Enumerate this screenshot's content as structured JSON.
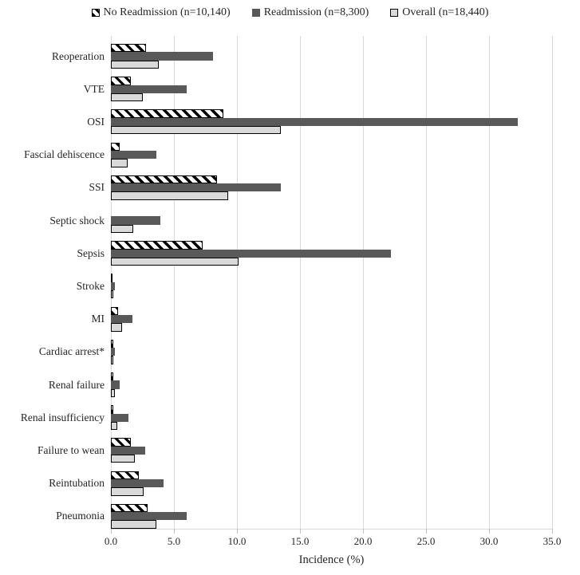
{
  "legend": {
    "items": [
      {
        "label": "No Readmission (n=10,140)",
        "marker": "striped-square-icon",
        "style": "striped"
      },
      {
        "label": "Readmission (n=8,300)",
        "marker": "dark-square-icon",
        "style": "dark"
      },
      {
        "label": "Overall (n=18,440)",
        "marker": "light-square-icon",
        "style": "light"
      }
    ]
  },
  "chart_data": {
    "type": "bar",
    "orientation": "horizontal",
    "title": "",
    "xlabel": "Incidence (%)",
    "ylabel": "",
    "xlim": [
      0,
      35
    ],
    "xticks": [
      0,
      5,
      10,
      15,
      20,
      25,
      30,
      35
    ],
    "xtick_labels": [
      "0.0",
      "5.0",
      "10.0",
      "15.0",
      "20.0",
      "25.0",
      "30.0",
      "35.0"
    ],
    "grid": true,
    "legend_position": "top",
    "categories": [
      "Reoperation",
      "VTE",
      "OSI",
      "Fascial dehiscence",
      "SSI",
      "Septic shock",
      "Sepsis",
      "Stroke",
      "MI",
      "Cardiac arrest*",
      "Renal failure",
      "Renal insufficiency",
      "Failure to wean",
      "Reintubation",
      "Pneumonia"
    ],
    "series": [
      {
        "name": "No Readmission (n=10,140)",
        "style": "striped",
        "values": [
          2.8,
          1.6,
          8.9,
          0.7,
          8.4,
          0.0,
          7.3,
          0.1,
          0.6,
          0.2,
          0.2,
          0.2,
          1.6,
          2.2,
          2.9
        ]
      },
      {
        "name": "Readmission (n=8,300)",
        "style": "dark",
        "values": [
          8.1,
          6.0,
          32.3,
          3.6,
          13.5,
          3.9,
          22.2,
          0.3,
          1.7,
          0.3,
          0.7,
          1.4,
          2.7,
          4.2,
          6.0
        ]
      },
      {
        "name": "Overall (n=18,440)",
        "style": "light",
        "values": [
          3.8,
          2.5,
          13.5,
          1.3,
          9.3,
          1.8,
          10.1,
          0.2,
          0.9,
          0.2,
          0.3,
          0.5,
          1.9,
          2.6,
          3.6
        ]
      }
    ],
    "colors": {
      "striped_fg": "#000000",
      "striped_bg": "#ffffff",
      "dark": "#595959",
      "light": "#d9d9d9",
      "gridline": "#d9d9d9",
      "text": "#262626"
    }
  }
}
